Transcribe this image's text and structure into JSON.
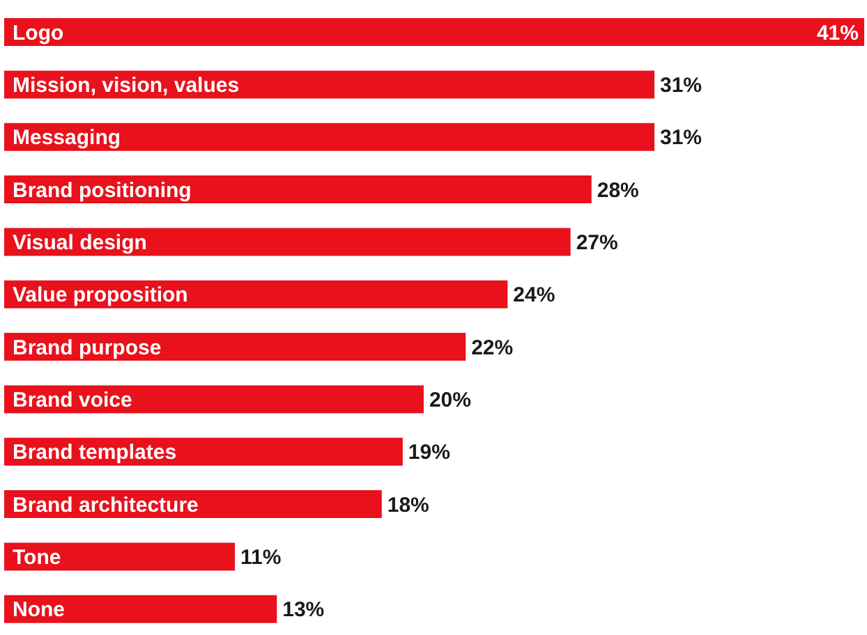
{
  "chart_data": {
    "type": "bar",
    "orientation": "horizontal",
    "categories": [
      "Logo",
      "Mission, vision, values",
      "Messaging",
      "Brand positioning",
      "Visual design",
      "Value proposition",
      "Brand purpose",
      "Brand voice",
      "Brand templates",
      "Brand architecture",
      "Tone",
      "None"
    ],
    "values": [
      41,
      31,
      31,
      28,
      27,
      24,
      22,
      20,
      19,
      18,
      11,
      13
    ],
    "value_labels": [
      "41%",
      "31%",
      "31%",
      "28%",
      "27%",
      "24%",
      "22%",
      "20%",
      "19%",
      "18%",
      "11%",
      "13%"
    ],
    "color": "#e8111c",
    "grid": false,
    "legend": false
  }
}
